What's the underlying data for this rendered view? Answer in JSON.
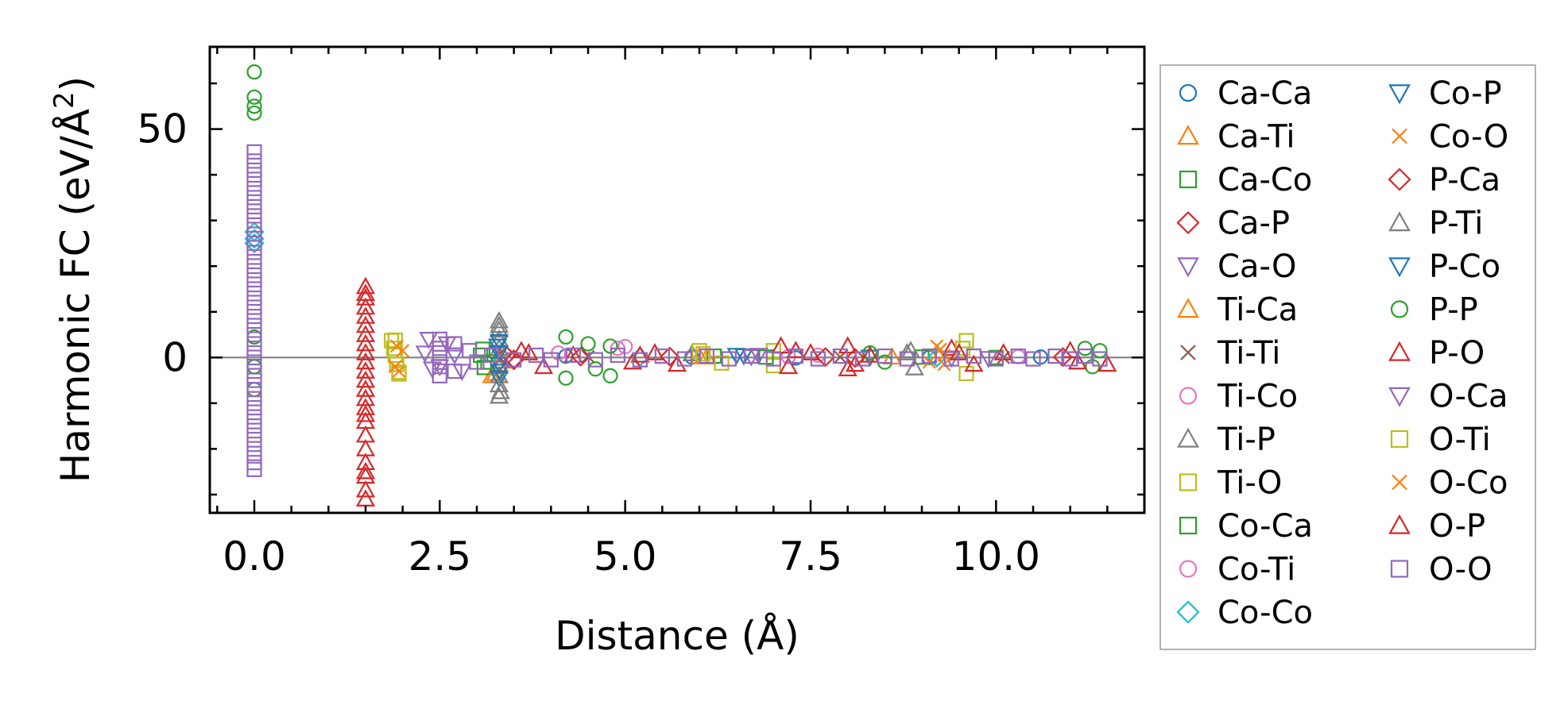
{
  "chart_data": {
    "type": "scatter",
    "title": "",
    "xlabel": "Distance (Å)",
    "ylabel_main": "Harmonic FC (eV/Å",
    "ylabel_sup": "2",
    "ylabel_end": ")",
    "xlim": [
      -0.6,
      12.0
    ],
    "ylim": [
      -34,
      68
    ],
    "xticks": [
      0.0,
      2.5,
      5.0,
      7.5,
      10.0
    ],
    "xtick_labels": [
      "0.0",
      "2.5",
      "5.0",
      "7.5",
      "10.0"
    ],
    "yticks": [
      0,
      50
    ],
    "ytick_labels": [
      "0",
      "50"
    ],
    "zero_line": true,
    "legend_position": "right-outside",
    "legend_columns": 2,
    "series": [
      {
        "name": "Ca-Ca",
        "marker": "circle",
        "color": "#1f77b4",
        "points": [
          [
            4.2,
            0.3
          ],
          [
            5.9,
            0.1
          ],
          [
            7.3,
            -0.1
          ],
          [
            9.1,
            0.0
          ],
          [
            10.6,
            0.1
          ]
        ]
      },
      {
        "name": "Ca-Ti",
        "marker": "triangle-up",
        "color": "#ff7f0e",
        "points": [
          [
            3.2,
            -4.0
          ],
          [
            3.3,
            -1.5
          ],
          [
            3.3,
            0.5
          ],
          [
            6.0,
            0.2
          ],
          [
            8.6,
            0.1
          ]
        ]
      },
      {
        "name": "Ca-Co",
        "marker": "square",
        "color": "#2ca02c",
        "points": [
          [
            3.05,
            0.5
          ],
          [
            3.1,
            -2.2
          ],
          [
            3.15,
            -1.0
          ],
          [
            6.2,
            0.3
          ],
          [
            9.0,
            0.1
          ]
        ]
      },
      {
        "name": "Ca-P",
        "marker": "diamond",
        "color": "#d62728",
        "points": [
          [
            3.4,
            0.4
          ],
          [
            3.5,
            -0.6
          ],
          [
            5.6,
            0.2
          ],
          [
            8.1,
            -0.1
          ],
          [
            10.9,
            0.1
          ]
        ]
      },
      {
        "name": "Ca-O",
        "marker": "triangle-down",
        "color": "#9467bd",
        "points": [
          [
            2.3,
            1.0
          ],
          [
            2.5,
            -2.0
          ],
          [
            2.7,
            0.6
          ],
          [
            6.7,
            0.2
          ],
          [
            9.4,
            -0.1
          ]
        ]
      },
      {
        "name": "Ti-Ca",
        "marker": "triangle-up",
        "color": "#ff7f0e",
        "points": [
          [
            3.25,
            -3.5
          ],
          [
            3.35,
            -0.8
          ],
          [
            6.1,
            0.1
          ]
        ]
      },
      {
        "name": "Ti-Ti",
        "marker": "x",
        "color": "#8c564b",
        "points": [
          [
            4.5,
            0.2
          ],
          [
            7.9,
            0.1
          ],
          [
            10.1,
            0.0
          ]
        ]
      },
      {
        "name": "Ti-Co",
        "marker": "circle",
        "color": "#e377c2",
        "points": [
          [
            4.1,
            1.0
          ],
          [
            5.0,
            2.4
          ],
          [
            7.6,
            0.5
          ],
          [
            10.3,
            0.2
          ]
        ]
      },
      {
        "name": "Ti-P",
        "marker": "triangle-up",
        "color": "#7f7f7f",
        "points": [
          [
            3.3,
            8.0
          ],
          [
            3.3,
            6.0
          ],
          [
            3.3,
            4.0
          ],
          [
            3.3,
            2.0
          ],
          [
            3.3,
            -2.0
          ],
          [
            3.3,
            -4.0
          ],
          [
            3.3,
            -6.0
          ],
          [
            3.3,
            -8.5
          ],
          [
            5.9,
            0.8
          ],
          [
            8.8,
            1.0
          ],
          [
            8.9,
            -2.3
          ]
        ]
      },
      {
        "name": "Ti-O",
        "marker": "square",
        "color": "#bcbd22",
        "points": [
          [
            1.85,
            3.7
          ],
          [
            1.88,
            2.0
          ],
          [
            1.9,
            0.5
          ],
          [
            1.92,
            -1.5
          ],
          [
            1.95,
            -3.6
          ],
          [
            6.0,
            1.5
          ],
          [
            6.3,
            -1.2
          ],
          [
            7.0,
            1.5
          ],
          [
            7.0,
            -1.8
          ],
          [
            9.6,
            3.7
          ],
          [
            9.6,
            -3.5
          ]
        ]
      },
      {
        "name": "Co-Ca",
        "marker": "square",
        "color": "#2ca02c",
        "points": [
          [
            3.08,
            1.8
          ],
          [
            6.9,
            0.1
          ],
          [
            10.0,
            0.0
          ]
        ]
      },
      {
        "name": "Co-Ti",
        "marker": "circle",
        "color": "#e377c2",
        "points": [
          [
            4.9,
            2.0
          ],
          [
            7.2,
            0.2
          ]
        ]
      },
      {
        "name": "Co-Co",
        "marker": "diamond",
        "color": "#17becf",
        "points": [
          [
            0.0,
            27.5
          ],
          [
            0.0,
            26.0
          ],
          [
            0.0,
            25.0
          ],
          [
            5.2,
            0.1
          ],
          [
            9.2,
            0.0
          ]
        ]
      },
      {
        "name": "Co-P",
        "marker": "triangle-down",
        "color": "#1f77b4",
        "points": [
          [
            3.3,
            3.5
          ],
          [
            3.3,
            1.0
          ],
          [
            3.3,
            -1.5
          ],
          [
            3.3,
            -4.5
          ],
          [
            6.5,
            0.5
          ],
          [
            8.3,
            0.1
          ]
        ]
      },
      {
        "name": "Co-O",
        "marker": "x",
        "color": "#ff7f0e",
        "points": [
          [
            1.95,
            -3.0
          ],
          [
            2.0,
            1.5
          ],
          [
            9.2,
            2.5
          ],
          [
            9.3,
            0.5
          ],
          [
            9.1,
            -1.0
          ]
        ]
      },
      {
        "name": "P-Ca",
        "marker": "diamond",
        "color": "#d62728",
        "points": [
          [
            3.5,
            -0.4
          ],
          [
            4.4,
            0.2
          ],
          [
            7.7,
            0.1
          ]
        ]
      },
      {
        "name": "P-Ti",
        "marker": "triangle-up",
        "color": "#7f7f7f",
        "points": [
          [
            3.3,
            7.0
          ],
          [
            3.32,
            -7.5
          ],
          [
            8.85,
            1.5
          ]
        ]
      },
      {
        "name": "P-Co",
        "marker": "triangle-down",
        "color": "#1f77b4",
        "points": [
          [
            3.28,
            2.5
          ],
          [
            3.31,
            -3.0
          ],
          [
            6.6,
            0.4
          ]
        ]
      },
      {
        "name": "P-P",
        "marker": "circle",
        "color": "#2ca02c",
        "points": [
          [
            0.0,
            62.5
          ],
          [
            0.0,
            57.0
          ],
          [
            0.0,
            55.0
          ],
          [
            0.0,
            53.5
          ],
          [
            0.0,
            4.5
          ],
          [
            0.0,
            -2.0
          ],
          [
            0.0,
            -7.0
          ],
          [
            4.2,
            4.5
          ],
          [
            4.2,
            -4.5
          ],
          [
            4.5,
            3.0
          ],
          [
            4.6,
            -2.5
          ],
          [
            4.8,
            2.5
          ],
          [
            4.8,
            -4.0
          ],
          [
            8.3,
            1.0
          ],
          [
            8.5,
            -1.0
          ],
          [
            11.2,
            2.0
          ],
          [
            11.3,
            -2.0
          ],
          [
            11.4,
            1.5
          ]
        ]
      },
      {
        "name": "P-O",
        "marker": "triangle-up",
        "color": "#d62728",
        "points": [
          [
            1.5,
            15.5
          ],
          [
            1.5,
            13.0
          ],
          [
            1.5,
            11.0
          ],
          [
            1.5,
            9.0
          ],
          [
            1.5,
            7.0
          ],
          [
            1.5,
            5.0
          ],
          [
            1.5,
            3.0
          ],
          [
            1.5,
            1.0
          ],
          [
            1.5,
            -1.0
          ],
          [
            1.5,
            -3.0
          ],
          [
            1.5,
            -5.0
          ],
          [
            1.5,
            -7.0
          ],
          [
            1.5,
            -9.0
          ],
          [
            1.5,
            -11.0
          ],
          [
            1.5,
            -14.0
          ],
          [
            1.5,
            -17.0
          ],
          [
            1.5,
            -20.0
          ],
          [
            1.5,
            -23.0
          ],
          [
            1.5,
            -26.0
          ],
          [
            1.5,
            -29.0
          ],
          [
            1.5,
            -31.0
          ],
          [
            3.6,
            1.5
          ],
          [
            3.9,
            -2.0
          ],
          [
            4.3,
            0.5
          ],
          [
            5.1,
            -1.0
          ],
          [
            5.4,
            1.0
          ],
          [
            5.7,
            -1.5
          ],
          [
            7.1,
            2.5
          ],
          [
            7.2,
            -2.0
          ],
          [
            7.5,
            1.0
          ],
          [
            8.0,
            2.5
          ],
          [
            8.0,
            -2.5
          ],
          [
            8.3,
            0.5
          ],
          [
            9.4,
            2.0
          ],
          [
            9.7,
            -1.5
          ],
          [
            10.1,
            1.0
          ],
          [
            11.0,
            1.5
          ],
          [
            11.5,
            -1.5
          ]
        ]
      },
      {
        "name": "O-Ca",
        "marker": "triangle-down",
        "color": "#9467bd",
        "points": [
          [
            2.35,
            4.0
          ],
          [
            2.4,
            -2.5
          ],
          [
            2.6,
            3.0
          ],
          [
            2.8,
            -3.0
          ],
          [
            6.8,
            0.5
          ],
          [
            9.9,
            -0.2
          ]
        ]
      },
      {
        "name": "O-Ti",
        "marker": "square",
        "color": "#bcbd22",
        "points": [
          [
            1.9,
            3.8
          ],
          [
            1.95,
            -3.2
          ],
          [
            6.05,
            0.8
          ],
          [
            9.55,
            2.0
          ]
        ]
      },
      {
        "name": "O-Co",
        "marker": "x",
        "color": "#ff7f0e",
        "points": [
          [
            1.92,
            2.5
          ],
          [
            1.9,
            -2.0
          ],
          [
            9.25,
            1.8
          ],
          [
            9.3,
            -1.5
          ]
        ]
      },
      {
        "name": "O-P",
        "marker": "triangle-up",
        "color": "#d62728",
        "points": [
          [
            1.5,
            14.0
          ],
          [
            1.5,
            -12.5
          ],
          [
            1.5,
            -25.0
          ],
          [
            3.7,
            1.0
          ],
          [
            5.2,
            0.5
          ],
          [
            7.3,
            1.5
          ],
          [
            8.1,
            -1.5
          ],
          [
            9.5,
            1.0
          ],
          [
            11.1,
            -1.0
          ]
        ]
      },
      {
        "name": "O-O",
        "marker": "square",
        "color": "#9467bd",
        "points": [
          [
            0.0,
            45.0
          ],
          [
            0.0,
            43.0
          ],
          [
            0.0,
            41.0
          ],
          [
            0.0,
            39.0
          ],
          [
            0.0,
            37.0
          ],
          [
            0.0,
            35.0
          ],
          [
            0.0,
            33.0
          ],
          [
            0.0,
            31.0
          ],
          [
            0.0,
            29.0
          ],
          [
            0.0,
            27.0
          ],
          [
            0.0,
            25.0
          ],
          [
            0.0,
            23.0
          ],
          [
            0.0,
            21.0
          ],
          [
            0.0,
            19.0
          ],
          [
            0.0,
            17.0
          ],
          [
            0.0,
            15.0
          ],
          [
            0.0,
            13.0
          ],
          [
            0.0,
            11.0
          ],
          [
            0.0,
            9.0
          ],
          [
            0.0,
            7.0
          ],
          [
            0.0,
            5.0
          ],
          [
            0.0,
            3.0
          ],
          [
            0.0,
            1.0
          ],
          [
            0.0,
            -1.0
          ],
          [
            0.0,
            -3.0
          ],
          [
            0.0,
            -5.0
          ],
          [
            0.0,
            -7.0
          ],
          [
            0.0,
            -9.0
          ],
          [
            0.0,
            -11.0
          ],
          [
            0.0,
            -13.0
          ],
          [
            0.0,
            -15.0
          ],
          [
            0.0,
            -17.0
          ],
          [
            0.0,
            -19.0
          ],
          [
            0.0,
            -21.0
          ],
          [
            0.0,
            -23.0
          ],
          [
            0.0,
            -24.5
          ],
          [
            2.5,
            4.0
          ],
          [
            2.5,
            2.0
          ],
          [
            2.5,
            0.0
          ],
          [
            2.5,
            -2.0
          ],
          [
            2.5,
            -4.0
          ],
          [
            2.7,
            3.0
          ],
          [
            2.7,
            -3.0
          ],
          [
            2.9,
            1.5
          ],
          [
            3.0,
            -1.0
          ],
          [
            3.2,
            0.5
          ],
          [
            3.5,
            -0.5
          ],
          [
            3.8,
            0.5
          ],
          [
            4.0,
            -0.5
          ],
          [
            4.3,
            0.5
          ],
          [
            4.6,
            -0.5
          ],
          [
            4.9,
            0.5
          ],
          [
            5.2,
            -0.5
          ],
          [
            5.5,
            0.3
          ],
          [
            5.8,
            -0.3
          ],
          [
            6.1,
            0.3
          ],
          [
            6.4,
            -0.3
          ],
          [
            6.7,
            0.3
          ],
          [
            7.0,
            -0.3
          ],
          [
            7.3,
            0.3
          ],
          [
            7.6,
            -0.3
          ],
          [
            7.9,
            0.3
          ],
          [
            8.2,
            -0.3
          ],
          [
            8.5,
            0.3
          ],
          [
            8.8,
            -0.3
          ],
          [
            9.1,
            0.3
          ],
          [
            9.4,
            -0.3
          ],
          [
            9.7,
            0.3
          ],
          [
            10.0,
            -0.3
          ],
          [
            10.3,
            0.3
          ],
          [
            10.5,
            -0.3
          ],
          [
            10.8,
            0.3
          ],
          [
            11.0,
            -0.3
          ],
          [
            11.2,
            0.3
          ],
          [
            11.4,
            -0.3
          ]
        ]
      }
    ]
  }
}
